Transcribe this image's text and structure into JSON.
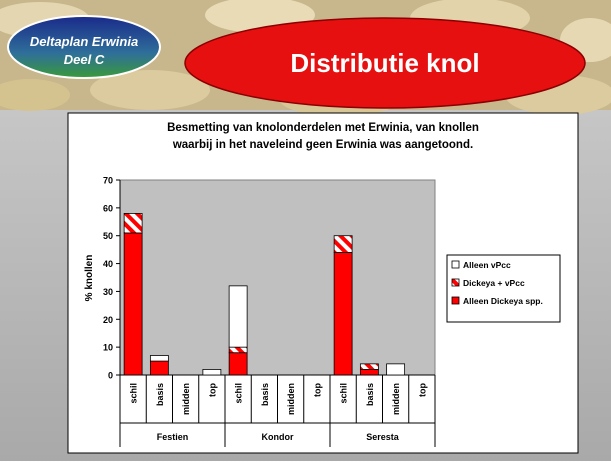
{
  "header": {
    "badge_lines": [
      "Deltaplan Erwinia",
      "Deel C"
    ],
    "title": "Distributie knol"
  },
  "chart_data": {
    "type": "stacked-bar",
    "title": [
      "Besmetting van knolonderdelen met Erwinia, van knollen",
      "waarbij in het naveleind geen Erwinia was aangetoond."
    ],
    "y_label": "% knollen",
    "categories": [
      "schil",
      "basis",
      "midden",
      "top",
      "schil",
      "basis",
      "midden",
      "top",
      "schil",
      "basis",
      "midden",
      "top"
    ],
    "groups": [
      "Festien",
      "Kondor",
      "Seresta"
    ],
    "series": [
      {
        "name": "Alleen Dickeya spp.",
        "color": "#ff0000",
        "hatch": false,
        "values": [
          51,
          5,
          0,
          0,
          8,
          0,
          0,
          0,
          44,
          2,
          0,
          0
        ]
      },
      {
        "name": "Dickeya + vPcc",
        "color": "#ff0000",
        "hatch": true,
        "values": [
          7,
          0,
          0,
          0,
          2,
          0,
          0,
          0,
          6,
          2,
          0,
          0
        ]
      },
      {
        "name": "Alleen vPcc",
        "color": "#ffffff",
        "hatch": false,
        "values": [
          0,
          2,
          0,
          2,
          22,
          0,
          0,
          0,
          0,
          0,
          4,
          0
        ]
      }
    ],
    "ylim": [
      0,
      70
    ],
    "yticks": [
      0,
      10,
      20,
      30,
      40,
      50,
      60,
      70
    ],
    "grid": false,
    "legend": "right"
  }
}
